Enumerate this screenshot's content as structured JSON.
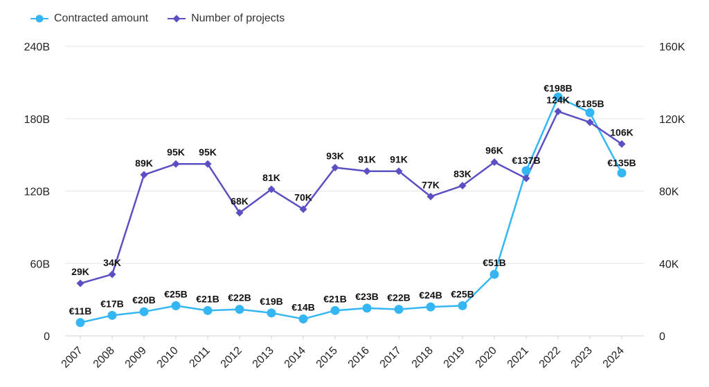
{
  "chart_data": {
    "type": "line",
    "categories": [
      "2007",
      "2008",
      "2009",
      "2010",
      "2011",
      "2012",
      "2013",
      "2014",
      "2015",
      "2016",
      "2017",
      "2018",
      "2019",
      "2020",
      "2021",
      "2022",
      "2023",
      "2024"
    ],
    "series": [
      {
        "name": "Contracted amount",
        "axis": "left",
        "color": "#34b6f5",
        "marker": "circle",
        "values": [
          11,
          17,
          20,
          25,
          21,
          22,
          19,
          14,
          21,
          23,
          22,
          24,
          25,
          51,
          137,
          198,
          185,
          135
        ],
        "labels": [
          "€11B",
          "€17B",
          "€20B",
          "€25B",
          "€21B",
          "€22B",
          "€19B",
          "€14B",
          "€21B",
          "€23B",
          "€22B",
          "€24B",
          "€25B",
          "€51B",
          "€137B",
          "€198B",
          "€185B",
          "€135B"
        ]
      },
      {
        "name": "Number of projects",
        "axis": "right",
        "color": "#5b4fc4",
        "marker": "diamond",
        "values": [
          29,
          34,
          89,
          95,
          95,
          68,
          81,
          70,
          93,
          91,
          91,
          77,
          83,
          96,
          87,
          124,
          118,
          106
        ],
        "labels": [
          "29K",
          "34K",
          "89K",
          "95K",
          "95K",
          "68K",
          "81K",
          "70K",
          "93K",
          "91K",
          "91K",
          "77K",
          "83K",
          "96K",
          "",
          "124K",
          "",
          "106K"
        ]
      }
    ],
    "y_left": {
      "ylim": [
        0,
        240
      ],
      "ticks": [
        0,
        60,
        120,
        180,
        240
      ],
      "tick_labels": [
        "0",
        "60B",
        "120B",
        "180B",
        "240B"
      ]
    },
    "y_right": {
      "ylim": [
        0,
        160
      ],
      "ticks": [
        0,
        40,
        80,
        120,
        160
      ],
      "tick_labels": [
        "0",
        "40K",
        "80K",
        "120K",
        "160K"
      ]
    },
    "grid": true,
    "legend_position": "top-left"
  }
}
